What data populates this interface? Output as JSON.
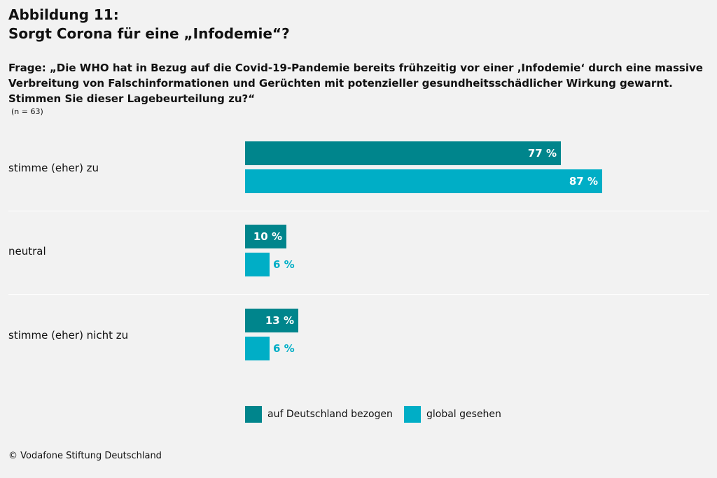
{
  "header": {
    "figure_label": "Abbildung 11:",
    "title": "Sorgt Corona für eine „Infodemie“?"
  },
  "question": "Frage: „Die WHO hat in Bezug auf die Covid-19-Pandemie bereits frühzeitig vor einer ‚Infodemie‘ durch eine massive Verbreitung von Falschinformationen und Gerüchten mit potenzieller gesundheitsschädlicher Wirkung gewarnt. Stimmen Sie dieser Lagebeurteilung zu?“",
  "sample_note": "(n = 63)",
  "colors": {
    "deutschland": "#00858c",
    "global": "#00aec6",
    "background": "#f2f2f2"
  },
  "chart_data": {
    "type": "bar",
    "orientation": "horizontal",
    "unit": "%",
    "categories": [
      "stimme (eher) zu",
      "neutral",
      "stimme (eher) nicht zu"
    ],
    "series": [
      {
        "name": "auf Deutschland bezogen",
        "values": [
          77,
          10,
          13
        ],
        "labels": [
          "77 %",
          "10 %",
          "13 %"
        ]
      },
      {
        "name": "global gesehen",
        "values": [
          87,
          6,
          6
        ],
        "labels": [
          "87 %",
          "6 %",
          "6 %"
        ]
      }
    ],
    "xlim": [
      0,
      100
    ],
    "grid": false,
    "legend": "bottom-center"
  },
  "footer": "© Vodafone Stiftung Deutschland"
}
